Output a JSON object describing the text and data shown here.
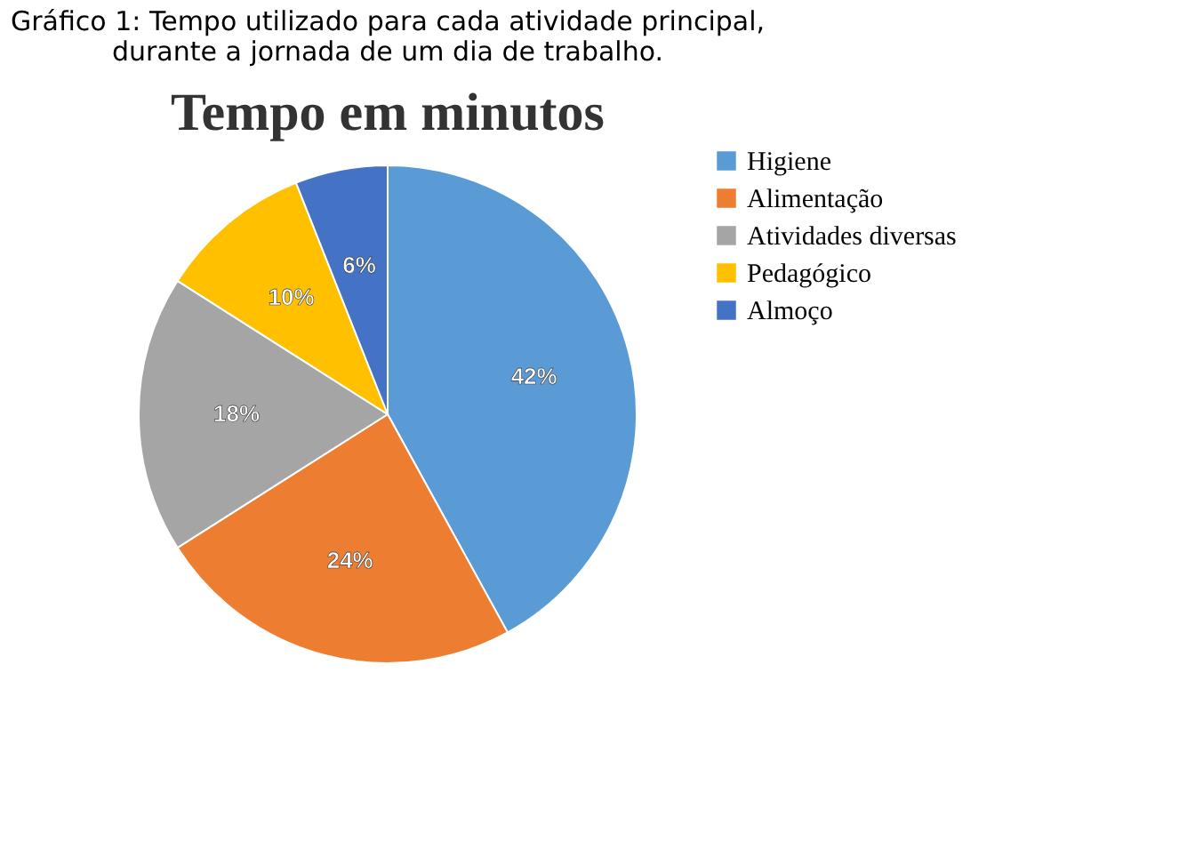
{
  "chart_data": {
    "type": "pie",
    "title": "Gráfico 1: Tempo utilizado para cada atividade principal, durante a jornada de um dia de trabalho.",
    "subtitle": "Tempo em minutos",
    "categories": [
      "Higiene",
      "Alimentação",
      "Atividades diversas",
      "Pedagógico",
      "Almoço"
    ],
    "values": [
      42,
      24,
      18,
      10,
      6
    ],
    "colors": [
      "#5b9bd5",
      "#ed7d31",
      "#a5a5a5",
      "#ffc000",
      "#4472c4"
    ],
    "value_labels": [
      "42%",
      "24%",
      "18%",
      "10%",
      "6%"
    ],
    "legend": "right"
  }
}
